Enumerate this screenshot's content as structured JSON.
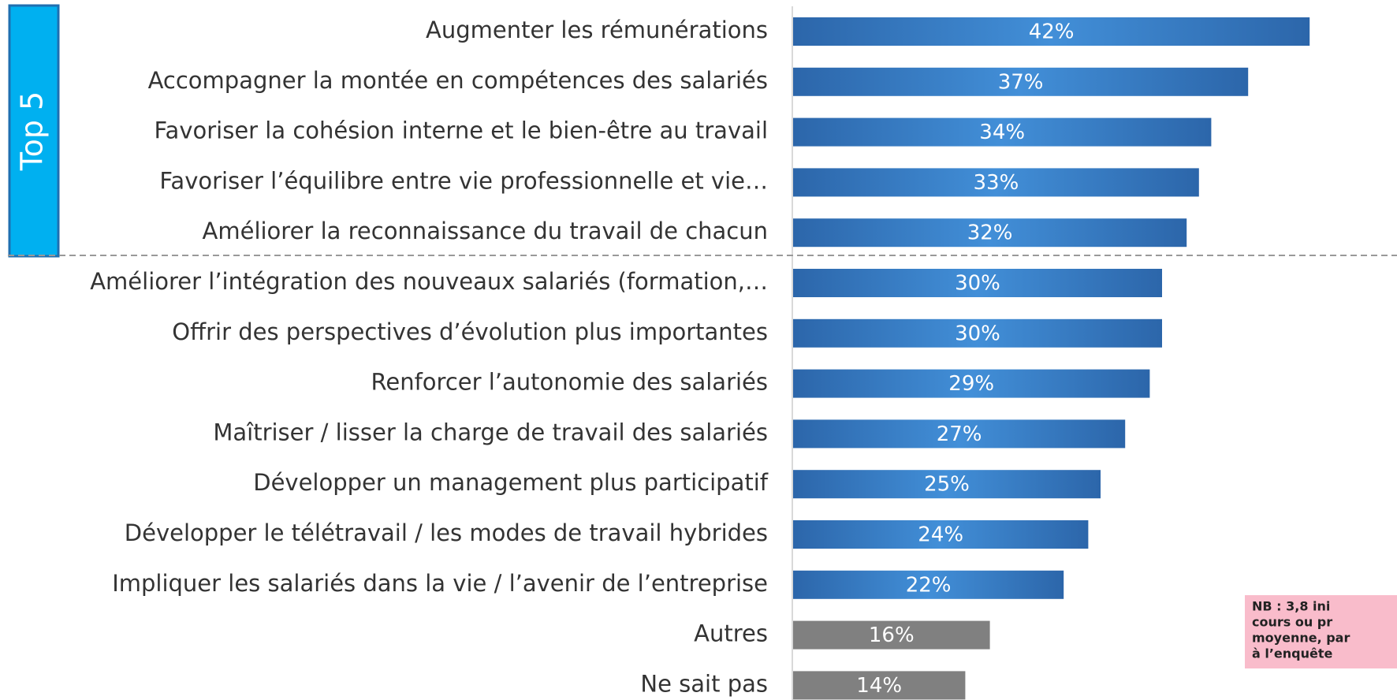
{
  "chart_data": {
    "type": "barh",
    "group_label": "Top 5",
    "categories": [
      "Augmenter les rémunérations",
      "Accompagner la montée en compétences des salariés",
      "Favoriser la cohésion interne et le bien-être au travail",
      "Favoriser l’équilibre entre vie professionnelle et vie…",
      "Améliorer la reconnaissance du travail de chacun",
      "Améliorer l’intégration des nouveaux salariés (formation,…",
      "Offrir des perspectives d’évolution plus importantes",
      "Renforcer l’autonomie des salariés",
      "Maîtriser / lisser la charge de travail des salariés",
      "Développer un management plus participatif",
      "Développer le télétravail / les modes de travail hybrides",
      "Impliquer les salariés dans la vie / l’avenir de l’entreprise",
      "Autres",
      "Ne sait pas"
    ],
    "values": [
      42,
      37,
      34,
      33,
      32,
      30,
      30,
      29,
      27,
      25,
      24,
      22,
      16,
      14
    ],
    "value_labels": [
      "42%",
      "37%",
      "34%",
      "33%",
      "32%",
      "30%",
      "30%",
      "29%",
      "27%",
      "25%",
      "24%",
      "22%",
      "16%",
      "14%"
    ],
    "colors": [
      "#2f6fb5",
      "#2f6fb5",
      "#2f6fb5",
      "#2f6fb5",
      "#2f6fb5",
      "#2f6fb5",
      "#2f6fb5",
      "#2f6fb5",
      "#2f6fb5",
      "#2f6fb5",
      "#2f6fb5",
      "#2f6fb5",
      "#808080",
      "#808080"
    ],
    "note_lines": [
      "NB : 3,8 ini",
      "cours ou pr",
      "moyenne, par",
      "à l’enquête"
    ]
  }
}
